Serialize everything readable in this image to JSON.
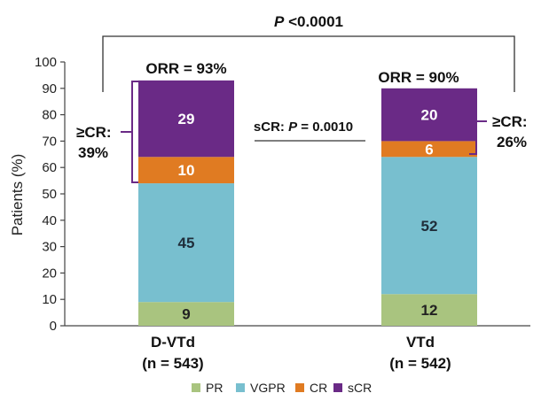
{
  "chart_data": {
    "type": "bar",
    "stacked": true,
    "ylabel": "Patients (%)",
    "ylim": [
      0,
      100
    ],
    "yticks": [
      0,
      10,
      20,
      30,
      40,
      50,
      60,
      70,
      80,
      90,
      100
    ],
    "grid": false,
    "legend_position": "bottom",
    "categories": [
      {
        "name": "D-VTd",
        "n": "(n = 543)"
      },
      {
        "name": "VTd",
        "n": "(n = 542)"
      }
    ],
    "series": [
      {
        "name": "PR",
        "color": "#a9c47f",
        "label_color": "#222222",
        "values": [
          9,
          12
        ]
      },
      {
        "name": "VGPR",
        "color": "#78bfcf",
        "label_color": "#1f2d3a",
        "values": [
          45,
          52
        ]
      },
      {
        "name": "CR",
        "color": "#e07b22",
        "label_color": "#ffffff",
        "values": [
          10,
          6
        ]
      },
      {
        "name": "sCR",
        "color": "#6a2a86",
        "label_color": "#ffffff",
        "values": [
          29,
          20
        ]
      }
    ],
    "annotations": {
      "orr": [
        "ORR = 93%",
        "ORR = 90%"
      ],
      "cr_or_better": {
        "left": {
          "line1": "≥CR:",
          "line2": "39%"
        },
        "right": {
          "line1": "≥CR:",
          "line2": "26%"
        }
      },
      "overall_p": {
        "prefix": "P",
        "value": " <0.0001"
      },
      "scr_p": {
        "prefix": "sCR: ",
        "p": "P",
        "value": " = 0.0010"
      }
    },
    "colors": {
      "bracket": "#6a2a86",
      "line": "#333333",
      "text": "#111111"
    }
  }
}
